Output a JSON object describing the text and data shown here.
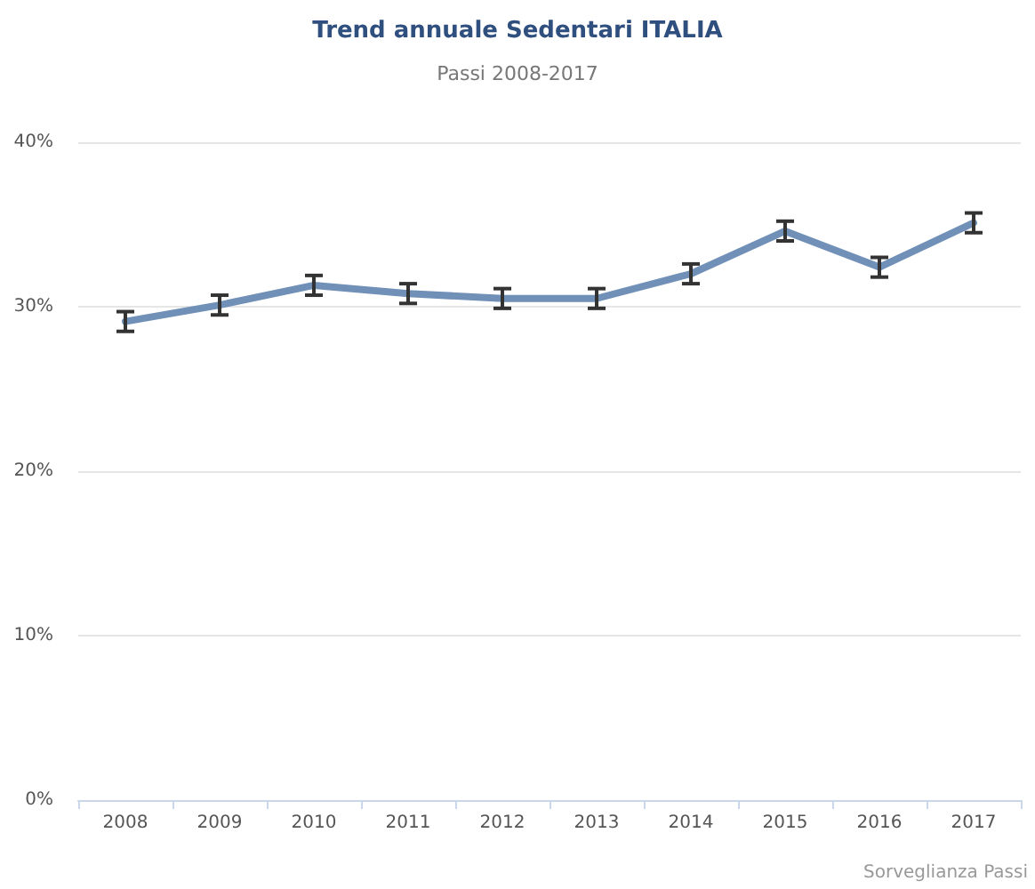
{
  "chart_data": {
    "type": "line",
    "title": "Trend annuale Sedentari ITALIA",
    "subtitle": "Passi 2008-2017",
    "categories": [
      "2008",
      "2009",
      "2010",
      "2011",
      "2012",
      "2013",
      "2014",
      "2015",
      "2016",
      "2017"
    ],
    "series": [
      {
        "color": "#7090b8",
        "values": [
          29.1,
          30.1,
          31.3,
          30.8,
          30.5,
          30.5,
          32.0,
          34.6,
          32.4,
          35.1
        ],
        "errors": [
          0.6,
          0.6,
          0.6,
          0.6,
          0.6,
          0.6,
          0.6,
          0.6,
          0.6,
          0.6
        ]
      }
    ],
    "ylim": [
      0,
      40
    ],
    "yticks": [
      {
        "value": 0,
        "label": "0%"
      },
      {
        "value": 10,
        "label": "10%"
      },
      {
        "value": 20,
        "label": "20%"
      },
      {
        "value": 30,
        "label": "30%"
      },
      {
        "value": 40,
        "label": "40%"
      }
    ],
    "grid": "y",
    "marker": "none",
    "line_style": "solid",
    "annotations": [
      "Sorveglianza Passi"
    ]
  }
}
